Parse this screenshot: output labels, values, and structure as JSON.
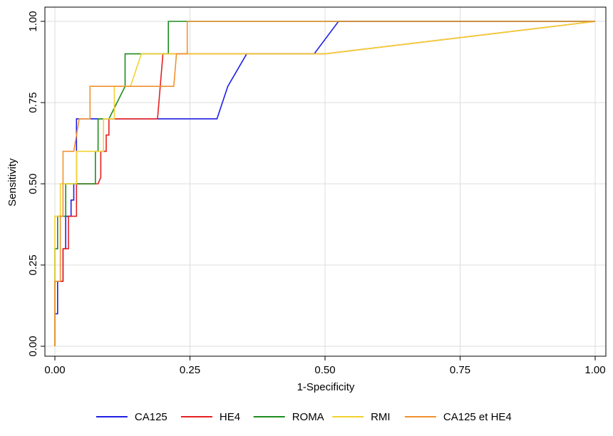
{
  "chart_data": {
    "type": "line",
    "xlabel": "1-Specificity",
    "ylabel": "Sensitivity",
    "xlim": [
      0,
      1
    ],
    "ylim": [
      0,
      1
    ],
    "grid": true,
    "legend_position": "bottom",
    "x_ticks": [
      {
        "value": 0,
        "label": "0.00"
      },
      {
        "value": 0.25,
        "label": "0.25"
      },
      {
        "value": 0.5,
        "label": "0.50"
      },
      {
        "value": 0.75,
        "label": "0.75"
      },
      {
        "value": 1,
        "label": "1.00"
      }
    ],
    "y_ticks": [
      {
        "value": 0,
        "label": "0.00"
      },
      {
        "value": 0.25,
        "label": "0.25"
      },
      {
        "value": 0.5,
        "label": "0.50"
      },
      {
        "value": 0.75,
        "label": "0.75"
      },
      {
        "value": 1,
        "label": "1.00"
      }
    ],
    "series": [
      {
        "name": "CA125",
        "color": "#1f1fe6",
        "points": [
          [
            0,
            0
          ],
          [
            0,
            0.1
          ],
          [
            0.005,
            0.1
          ],
          [
            0.005,
            0.2
          ],
          [
            0.015,
            0.2
          ],
          [
            0.015,
            0.3
          ],
          [
            0.02,
            0.3
          ],
          [
            0.02,
            0.4
          ],
          [
            0.03,
            0.4
          ],
          [
            0.03,
            0.45
          ],
          [
            0.035,
            0.45
          ],
          [
            0.035,
            0.5
          ],
          [
            0.04,
            0.5
          ],
          [
            0.04,
            0.7
          ],
          [
            0.3,
            0.7
          ],
          [
            0.31,
            0.75
          ],
          [
            0.32,
            0.8
          ],
          [
            0.355,
            0.9
          ],
          [
            0.48,
            0.9
          ],
          [
            0.525,
            1.0
          ],
          [
            1,
            1
          ]
        ]
      },
      {
        "name": "HE4",
        "color": "#e61f1f",
        "points": [
          [
            0,
            0
          ],
          [
            0,
            0.2
          ],
          [
            0.015,
            0.2
          ],
          [
            0.015,
            0.3
          ],
          [
            0.025,
            0.3
          ],
          [
            0.025,
            0.4
          ],
          [
            0.04,
            0.4
          ],
          [
            0.04,
            0.5
          ],
          [
            0.08,
            0.5
          ],
          [
            0.085,
            0.52
          ],
          [
            0.085,
            0.6
          ],
          [
            0.095,
            0.6
          ],
          [
            0.095,
            0.65
          ],
          [
            0.1,
            0.65
          ],
          [
            0.1,
            0.7
          ],
          [
            0.19,
            0.7
          ],
          [
            0.2,
            0.9
          ],
          [
            0.5,
            0.9
          ],
          [
            1,
            1
          ]
        ]
      },
      {
        "name": "ROMA",
        "color": "#1e8c1e",
        "points": [
          [
            0,
            0
          ],
          [
            0,
            0.3
          ],
          [
            0.005,
            0.3
          ],
          [
            0.005,
            0.4
          ],
          [
            0.02,
            0.4
          ],
          [
            0.02,
            0.5
          ],
          [
            0.075,
            0.5
          ],
          [
            0.075,
            0.6
          ],
          [
            0.08,
            0.6
          ],
          [
            0.08,
            0.7
          ],
          [
            0.1,
            0.7
          ],
          [
            0.13,
            0.8
          ],
          [
            0.13,
            0.9
          ],
          [
            0.21,
            0.9
          ],
          [
            0.21,
            1.0
          ],
          [
            1,
            1
          ]
        ]
      },
      {
        "name": "RMI",
        "color": "#f2d22e",
        "points": [
          [
            0,
            0
          ],
          [
            0,
            0.4
          ],
          [
            0.01,
            0.4
          ],
          [
            0.01,
            0.5
          ],
          [
            0.04,
            0.5
          ],
          [
            0.04,
            0.6
          ],
          [
            0.09,
            0.6
          ],
          [
            0.09,
            0.7
          ],
          [
            0.11,
            0.7
          ],
          [
            0.11,
            0.8
          ],
          [
            0.14,
            0.8
          ],
          [
            0.16,
            0.9
          ],
          [
            0.5,
            0.9
          ],
          [
            1,
            1
          ]
        ]
      },
      {
        "name": "CA125 et HE4",
        "color": "#f0922e",
        "points": [
          [
            0,
            0
          ],
          [
            0,
            0.2
          ],
          [
            0.01,
            0.2
          ],
          [
            0.01,
            0.4
          ],
          [
            0.015,
            0.4
          ],
          [
            0.015,
            0.6
          ],
          [
            0.035,
            0.6
          ],
          [
            0.045,
            0.7
          ],
          [
            0.045,
            0.7
          ],
          [
            0.065,
            0.7
          ],
          [
            0.065,
            0.8
          ],
          [
            0.22,
            0.8
          ],
          [
            0.225,
            0.9
          ],
          [
            0.245,
            0.9
          ],
          [
            0.245,
            1.0
          ],
          [
            1,
            1
          ]
        ]
      }
    ]
  }
}
